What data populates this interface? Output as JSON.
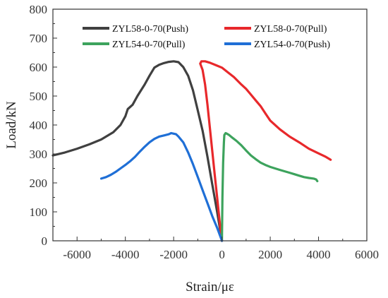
{
  "chart_data": {
    "type": "line",
    "xlabel": "Strain/με",
    "ylabel": "Load/kN",
    "xlim": [
      -7000,
      6000
    ],
    "ylim": [
      0,
      800
    ],
    "xticks": [
      -6000,
      -4000,
      -2000,
      0,
      2000,
      4000,
      6000
    ],
    "yticks": [
      0,
      100,
      200,
      300,
      400,
      500,
      600,
      700,
      800
    ],
    "grid": false,
    "legend_position": "top",
    "series": [
      {
        "name": "ZYL58-0-70(Push)",
        "color": "#404040",
        "x": [
          -7000,
          -6500,
          -6000,
          -5500,
          -5000,
          -4500,
          -4200,
          -4000,
          -3900,
          -3700,
          -3500,
          -3200,
          -3000,
          -2800,
          -2600,
          -2400,
          -2200,
          -2000,
          -1800,
          -1600,
          -1400,
          -1200,
          -1000,
          -800,
          -600,
          -400,
          -200,
          0
        ],
        "y": [
          295,
          305,
          318,
          333,
          350,
          375,
          400,
          430,
          455,
          470,
          500,
          540,
          570,
          598,
          608,
          614,
          618,
          620,
          617,
          600,
          570,
          520,
          450,
          380,
          290,
          195,
          100,
          0
        ]
      },
      {
        "name": "ZYL58-0-70(Pull)",
        "color": "#e8282b",
        "x": [
          0,
          -100,
          -200,
          -300,
          -400,
          -500,
          -600,
          -700,
          -800,
          -900,
          -850,
          -700,
          -500,
          -200,
          0,
          200,
          500,
          800,
          1000,
          1200,
          1400,
          1600,
          1800,
          2000,
          2400,
          2800,
          3200,
          3600,
          4000,
          4300,
          4500
        ],
        "y": [
          0,
          70,
          150,
          230,
          310,
          390,
          470,
          540,
          590,
          612,
          620,
          620,
          615,
          605,
          598,
          585,
          565,
          540,
          525,
          505,
          485,
          465,
          440,
          415,
          385,
          360,
          340,
          318,
          302,
          290,
          280
        ]
      },
      {
        "name": "ZYL54-0-70(Pull)",
        "color": "#3da35d",
        "x": [
          0,
          20,
          50,
          80,
          100,
          150,
          200,
          300,
          400,
          600,
          800,
          1000,
          1200,
          1400,
          1600,
          1800,
          2000,
          2200,
          2400,
          2600,
          2800,
          3000,
          3200,
          3400,
          3600,
          3800,
          3900,
          3950
        ],
        "y": [
          0,
          150,
          270,
          340,
          365,
          372,
          370,
          365,
          358,
          345,
          330,
          312,
          295,
          282,
          270,
          262,
          255,
          250,
          245,
          240,
          235,
          230,
          225,
          220,
          217,
          215,
          212,
          206
        ]
      },
      {
        "name": "ZYL54-0-70(Push)",
        "color": "#1f6fd6",
        "x": [
          -5000,
          -4800,
          -4600,
          -4400,
          -4200,
          -4000,
          -3800,
          -3600,
          -3400,
          -3200,
          -3000,
          -2800,
          -2600,
          -2400,
          -2200,
          -2100,
          -2000,
          -1900,
          -1800,
          -1600,
          -1400,
          -1200,
          -1000,
          -800,
          -600,
          -400,
          -200,
          0
        ],
        "y": [
          215,
          220,
          228,
          238,
          250,
          262,
          275,
          290,
          308,
          325,
          340,
          352,
          360,
          364,
          368,
          372,
          370,
          368,
          360,
          340,
          305,
          265,
          220,
          175,
          130,
          85,
          45,
          0
        ]
      }
    ]
  }
}
